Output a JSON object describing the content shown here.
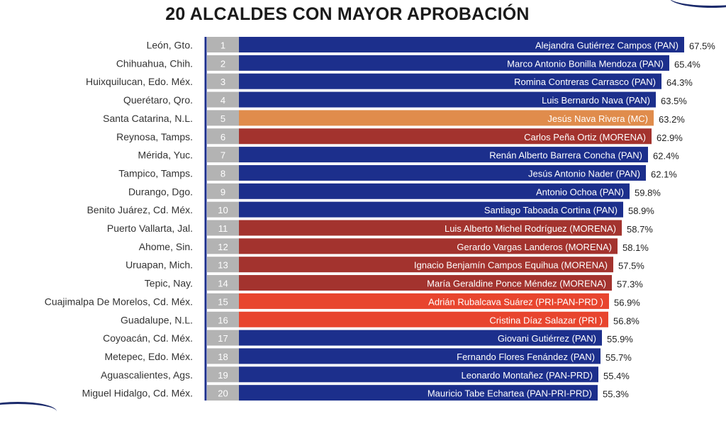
{
  "title": "20 ALCALDES CON MAYOR APROBACIÓN",
  "colors": {
    "PAN": "#1c2f8c",
    "MORENA": "#a3332e",
    "MC": "#e08c4c",
    "PRI": "#e8452e",
    "rank_box": "#b3b3b3",
    "axis_line": "#1c2f8c"
  },
  "chart_data": {
    "type": "bar",
    "orientation": "horizontal",
    "title": "20 ALCALDES CON MAYOR APROBACIÓN",
    "xlim": [
      0,
      67.5
    ],
    "rows": [
      {
        "rank": "1",
        "city": "León, Gto.",
        "name": "Alejandra Gutiérrez Campos (PAN)",
        "party": "PAN",
        "value": 67.5,
        "label": "67.5%"
      },
      {
        "rank": "2",
        "city": "Chihuahua, Chih.",
        "name": "Marco Antonio Bonilla Mendoza (PAN)",
        "party": "PAN",
        "value": 65.4,
        "label": "65.4%"
      },
      {
        "rank": "3",
        "city": "Huixquilucan, Edo. Méx.",
        "name": "Romina Contreras Carrasco  (PAN)",
        "party": "PAN",
        "value": 64.3,
        "label": "64.3%"
      },
      {
        "rank": "4",
        "city": "Querétaro, Qro.",
        "name": "Luis Bernardo Nava (PAN)",
        "party": "PAN",
        "value": 63.5,
        "label": "63.5%"
      },
      {
        "rank": "5",
        "city": "Santa Catarina, N.L.",
        "name": "Jesús Nava Rivera (MC)",
        "party": "MC",
        "value": 63.2,
        "label": "63.2%"
      },
      {
        "rank": "6",
        "city": "Reynosa, Tamps.",
        "name": "Carlos Peña Ortiz (MORENA)",
        "party": "MORENA",
        "value": 62.9,
        "label": "62.9%"
      },
      {
        "rank": "7",
        "city": "Mérida, Yuc.",
        "name": "Renán Alberto Barrera Concha (PAN)",
        "party": "PAN",
        "value": 62.4,
        "label": "62.4%"
      },
      {
        "rank": "8",
        "city": "Tampico, Tamps.",
        "name": "Jesús Antonio Nader  (PAN)",
        "party": "PAN",
        "value": 62.1,
        "label": "62.1%"
      },
      {
        "rank": "9",
        "city": "Durango, Dgo.",
        "name": "Antonio Ochoa (PAN)",
        "party": "PAN",
        "value": 59.8,
        "label": "59.8%"
      },
      {
        "rank": "10",
        "city": "Benito Juárez, Cd. Méx.",
        "name": "Santiago Taboada Cortina (PAN)",
        "party": "PAN",
        "value": 58.9,
        "label": "58.9%"
      },
      {
        "rank": "11",
        "city": "Puerto Vallarta, Jal.",
        "name": "Luis Alberto Michel Rodríguez (MORENA)",
        "party": "MORENA",
        "value": 58.7,
        "label": "58.7%"
      },
      {
        "rank": "12",
        "city": "Ahome, Sin.",
        "name": "Gerardo Vargas Landeros (MORENA)",
        "party": "MORENA",
        "value": 58.1,
        "label": "58.1%"
      },
      {
        "rank": "13",
        "city": "Uruapan, Mich.",
        "name": "Ignacio Benjamín Campos Equihua (MORENA)",
        "party": "MORENA",
        "value": 57.5,
        "label": "57.5%"
      },
      {
        "rank": "14",
        "city": "Tepic, Nay.",
        "name": "María Geraldine Ponce Méndez (MORENA)",
        "party": "MORENA",
        "value": 57.3,
        "label": "57.3%"
      },
      {
        "rank": "15",
        "city": "Cuajimalpa De Morelos, Cd. Méx.",
        "name": "Adrián Rubalcava Suárez (PRI-PAN-PRD )",
        "party": "PRI",
        "value": 56.9,
        "label": "56.9%"
      },
      {
        "rank": "16",
        "city": "Guadalupe, N.L.",
        "name": "Cristina Díaz Salazar (PRI )",
        "party": "PRI",
        "value": 56.8,
        "label": "56.8%"
      },
      {
        "rank": "17",
        "city": "Coyoacán, Cd. Méx.",
        "name": "Giovani Gutiérrez (PAN)",
        "party": "PAN",
        "value": 55.9,
        "label": "55.9%"
      },
      {
        "rank": "18",
        "city": "Metepec, Edo. Méx.",
        "name": "Fernando Flores Fenández (PAN)",
        "party": "PAN",
        "value": 55.7,
        "label": "55.7%"
      },
      {
        "rank": "19",
        "city": "Aguascalientes, Ags.",
        "name": "Leonardo Montañez (PAN-PRD)",
        "party": "PAN",
        "value": 55.4,
        "label": "55.4%"
      },
      {
        "rank": "20",
        "city": "Miguel Hidalgo, Cd. Méx.",
        "name": "Mauricio Tabe Echartea (PAN-PRI-PRD)",
        "party": "PAN",
        "value": 55.3,
        "label": "55.3%"
      }
    ]
  }
}
